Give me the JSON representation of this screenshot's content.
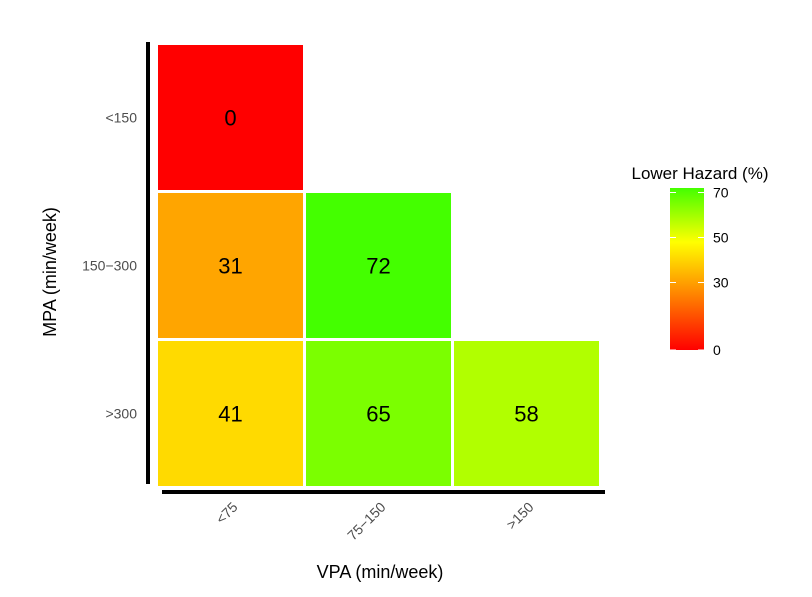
{
  "chart_data": {
    "type": "heatmap",
    "title": "",
    "xlabel": "VPA (min/week)",
    "ylabel": "MPA (min/week)",
    "x_categories": [
      "<75",
      "75−150",
      ">150"
    ],
    "y_categories": [
      "<150",
      "150−300",
      ">300"
    ],
    "cells": [
      {
        "x": "<75",
        "y": "<150",
        "value": 0,
        "label": "0"
      },
      {
        "x": "<75",
        "y": "150−300",
        "value": 31,
        "label": "31"
      },
      {
        "x": "75−150",
        "y": "150−300",
        "value": 72,
        "label": "72"
      },
      {
        "x": "<75",
        "y": ">300",
        "value": 41,
        "label": "41"
      },
      {
        "x": "75−150",
        "y": ">300",
        "value": 65,
        "label": "65"
      },
      {
        "x": ">150",
        "y": ">300",
        "value": 58,
        "label": "58"
      }
    ],
    "legend": {
      "title": "Lower Hazard (%)",
      "position": "right",
      "range": [
        0,
        72
      ],
      "ticks": [
        0,
        30,
        50,
        70
      ],
      "tick_labels": [
        "0",
        "30",
        "50",
        "70"
      ],
      "colors": [
        "#ff0000",
        "#ff8000",
        "#ffff00",
        "#44ff00"
      ]
    },
    "grid": false
  }
}
